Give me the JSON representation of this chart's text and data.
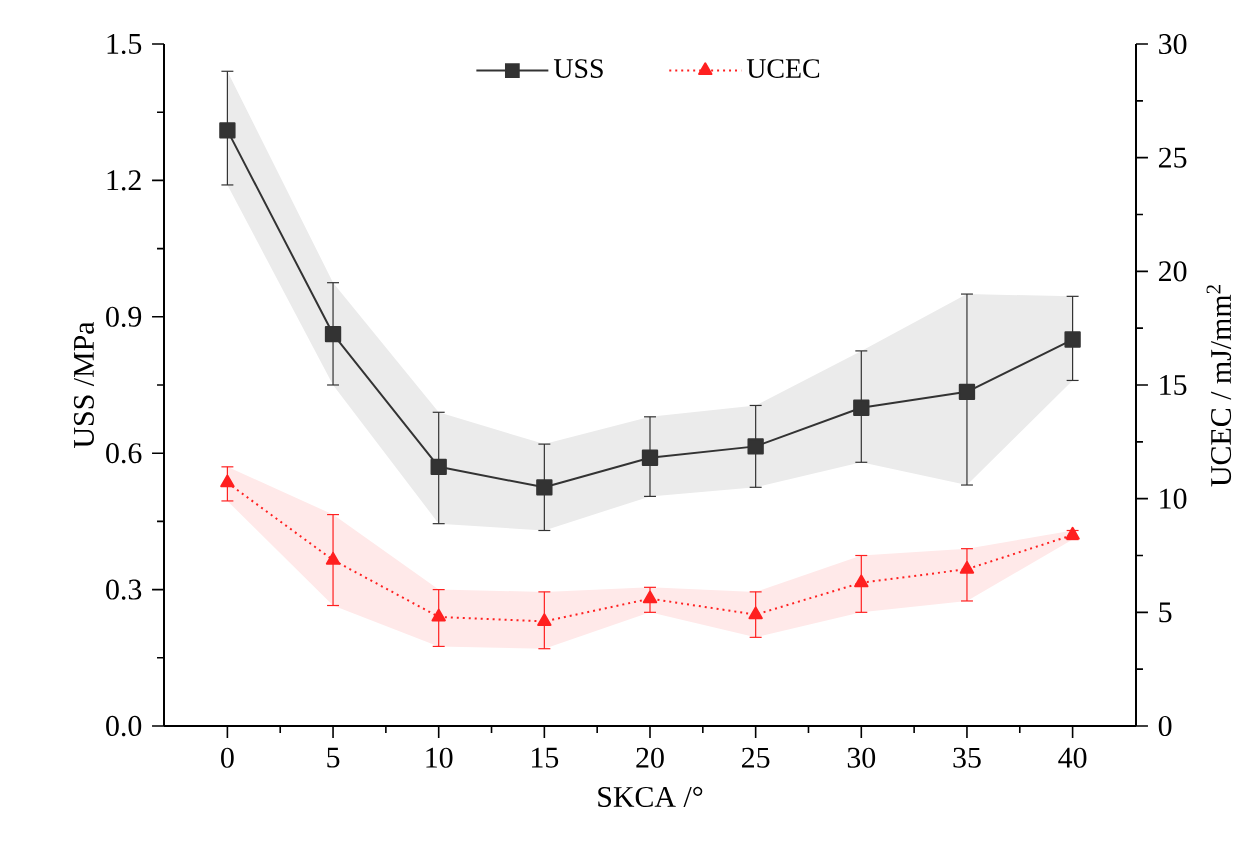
{
  "chart_data": {
    "type": "line",
    "xlabel": "SKCA /°",
    "ylabel": "USS /MPa",
    "y2label": "UCEC /  mJ/mm$^{2}$",
    "x": [
      0,
      5,
      10,
      15,
      20,
      25,
      30,
      35,
      40
    ],
    "series": [
      {
        "name": "USS",
        "color": "#333333",
        "marker": "square",
        "line_style": "solid",
        "values": [
          1.31,
          0.862,
          0.57,
          0.525,
          0.59,
          0.615,
          0.7,
          0.735,
          0.85
        ],
        "errors": [
          [
            1.19,
            1.44
          ],
          [
            0.75,
            0.975
          ],
          [
            0.445,
            0.69
          ],
          [
            0.43,
            0.62
          ],
          [
            0.505,
            0.68
          ],
          [
            0.525,
            0.705
          ],
          [
            0.58,
            0.825
          ],
          [
            0.53,
            0.95
          ],
          [
            0.76,
            0.945
          ]
        ],
        "lower": [
          1.19,
          0.75,
          0.445,
          0.43,
          0.505,
          0.525,
          0.58,
          0.53,
          0.76
        ],
        "upper": [
          1.44,
          0.975,
          0.69,
          0.62,
          0.68,
          0.705,
          0.825,
          0.95,
          0.945
        ]
      },
      {
        "name": "UCEC",
        "color": "#ff2020",
        "axis": "y2",
        "marker": "triangle",
        "line_style": "dotted",
        "values": [
          10.7,
          7.3,
          4.8,
          4.6,
          5.6,
          4.9,
          6.3,
          6.9,
          8.4
        ],
        "errors": [
          [
            9.9,
            11.4
          ],
          [
            5.3,
            9.3
          ],
          [
            3.5,
            6.0
          ],
          [
            3.4,
            5.9
          ],
          [
            5.0,
            6.1
          ],
          [
            3.9,
            5.9
          ],
          [
            5.0,
            7.5
          ],
          [
            5.5,
            7.8
          ],
          [
            8.2,
            8.6
          ]
        ],
        "lower": [
          9.9,
          5.3,
          3.5,
          3.4,
          5.0,
          3.9,
          5.0,
          5.5,
          8.2
        ],
        "upper": [
          11.4,
          9.3,
          6.0,
          5.9,
          6.1,
          5.9,
          7.5,
          7.8,
          8.6
        ]
      }
    ],
    "xlim": [
      -3,
      43
    ],
    "xticks": [
      0,
      5,
      10,
      15,
      20,
      25,
      30,
      35,
      40
    ],
    "ylim": [
      0,
      1.5
    ],
    "yticks": [
      {
        "value": 0,
        "label": "0.0"
      },
      0.3,
      0.6,
      0.9,
      1.2,
      1.5
    ],
    "y2lim": [
      0,
      30
    ],
    "y2ticks": [
      0,
      5,
      10,
      15,
      20,
      25,
      30
    ],
    "grid": false,
    "legend": "top"
  }
}
